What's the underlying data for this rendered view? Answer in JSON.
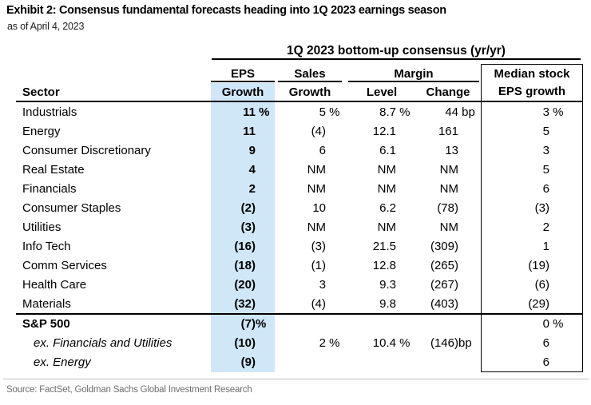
{
  "exhibit": {
    "title": "Exhibit 2: Consensus fundamental forecasts heading into 1Q 2023 earnings season",
    "subtitle": "as of April 4, 2023",
    "source": "Source: FactSet, Goldman Sachs Global Investment Research"
  },
  "table": {
    "group_header": "1Q 2023 bottom-up consensus (yr/yr)",
    "highlight_color": "#d0e7f8",
    "col_groups": {
      "eps": "EPS",
      "sales": "Sales",
      "margin": "Margin",
      "median_line1": "Median stock"
    },
    "col_headers": {
      "sector": "Sector",
      "eps_growth": "Growth",
      "sales_growth": "Growth",
      "margin_level": "Level",
      "margin_change": "Change",
      "median_line2": "EPS growth"
    },
    "rows": [
      {
        "sector": "Industrials",
        "eps": [
          "11",
          " %"
        ],
        "sales": [
          "5",
          " %"
        ],
        "level": [
          "8.7",
          " %"
        ],
        "change": [
          "44",
          " bp"
        ],
        "median": [
          "3",
          " %"
        ]
      },
      {
        "sector": "Energy",
        "eps": [
          "11",
          ""
        ],
        "sales": [
          "(4)",
          ""
        ],
        "level": [
          "12.1",
          ""
        ],
        "change": [
          "161",
          ""
        ],
        "median": [
          "5",
          ""
        ]
      },
      {
        "sector": "Consumer Discretionary",
        "eps": [
          "9",
          ""
        ],
        "sales": [
          "6",
          ""
        ],
        "level": [
          "6.1",
          ""
        ],
        "change": [
          "13",
          ""
        ],
        "median": [
          "3",
          ""
        ]
      },
      {
        "sector": "Real Estate",
        "eps": [
          "4",
          ""
        ],
        "sales": [
          "NM",
          ""
        ],
        "level": [
          "NM",
          ""
        ],
        "change": [
          "NM",
          ""
        ],
        "median": [
          "5",
          ""
        ]
      },
      {
        "sector": "Financials",
        "eps": [
          "2",
          ""
        ],
        "sales": [
          "NM",
          ""
        ],
        "level": [
          "NM",
          ""
        ],
        "change": [
          "NM",
          ""
        ],
        "median": [
          "6",
          ""
        ]
      },
      {
        "sector": "Consumer Staples",
        "eps": [
          "(2)",
          ""
        ],
        "sales": [
          "10",
          ""
        ],
        "level": [
          "6.2",
          ""
        ],
        "change": [
          "(78)",
          ""
        ],
        "median": [
          "(3)",
          ""
        ]
      },
      {
        "sector": "Utilities",
        "eps": [
          "(3)",
          ""
        ],
        "sales": [
          "NM",
          ""
        ],
        "level": [
          "NM",
          ""
        ],
        "change": [
          "NM",
          ""
        ],
        "median": [
          "2",
          ""
        ]
      },
      {
        "sector": "Info Tech",
        "eps": [
          "(16)",
          ""
        ],
        "sales": [
          "(3)",
          ""
        ],
        "level": [
          "21.5",
          ""
        ],
        "change": [
          "(309)",
          ""
        ],
        "median": [
          "1",
          ""
        ]
      },
      {
        "sector": "Comm Services",
        "eps": [
          "(18)",
          ""
        ],
        "sales": [
          "(1)",
          ""
        ],
        "level": [
          "12.8",
          ""
        ],
        "change": [
          "(265)",
          ""
        ],
        "median": [
          "(19)",
          ""
        ]
      },
      {
        "sector": "Health Care",
        "eps": [
          "(20)",
          ""
        ],
        "sales": [
          "3",
          ""
        ],
        "level": [
          "9.3",
          ""
        ],
        "change": [
          "(267)",
          ""
        ],
        "median": [
          "(6)",
          ""
        ]
      },
      {
        "sector": "Materials",
        "eps": [
          "(32)",
          ""
        ],
        "sales": [
          "(4)",
          ""
        ],
        "level": [
          "9.8",
          ""
        ],
        "change": [
          "(403)",
          ""
        ],
        "median": [
          "(29)",
          ""
        ]
      }
    ],
    "summary_rows": [
      {
        "sector": "S&P 500",
        "style": "bold",
        "eps": [
          "(7)",
          "%"
        ],
        "sales": [
          "",
          ""
        ],
        "level": [
          "",
          ""
        ],
        "change": [
          "",
          ""
        ],
        "median": [
          "0",
          " %"
        ]
      },
      {
        "sector": "ex. Financials and Utilities",
        "style": "italic",
        "eps": [
          "(10)",
          ""
        ],
        "sales": [
          "2",
          " %"
        ],
        "level": [
          "10.4",
          " %"
        ],
        "change": [
          "(146)",
          "bp"
        ],
        "median": [
          "6",
          ""
        ]
      },
      {
        "sector": "ex. Energy",
        "style": "italic",
        "eps": [
          "(9)",
          ""
        ],
        "sales": [
          "",
          ""
        ],
        "level": [
          "",
          ""
        ],
        "change": [
          "",
          ""
        ],
        "median": [
          "6",
          ""
        ]
      }
    ]
  }
}
